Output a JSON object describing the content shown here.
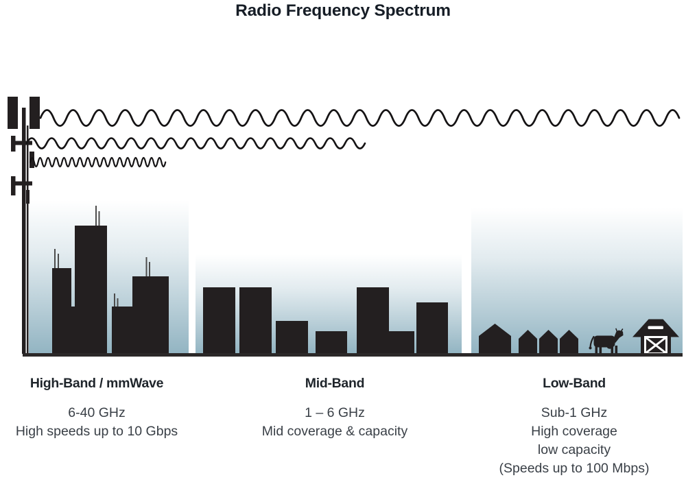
{
  "title": "Radio Frequency Spectrum",
  "bands": [
    {
      "id": "high-band",
      "heading": "High-Band / mmWave",
      "lines": [
        "6-40 GHz",
        "High speeds up to 10 Gbps"
      ],
      "scene": "city-skyscrapers",
      "wave": "short-wavelength-short-reach"
    },
    {
      "id": "mid-band",
      "heading": "Mid-Band",
      "lines": [
        "1 – 6 GHz",
        "Mid coverage & capacity"
      ],
      "scene": "mid-rise-buildings",
      "wave": "medium-wavelength-medium-reach"
    },
    {
      "id": "low-band",
      "heading": "Low-Band",
      "lines": [
        "Sub-1 GHz",
        "High coverage",
        "low capacity",
        "(Speeds up to 100 Mbps)"
      ],
      "scene": "rural-houses-cow-barn",
      "wave": "long-wavelength-longest-reach"
    }
  ],
  "icons": {
    "tower": "cell-tower-icon",
    "high_band_wave": "high-band-wave-icon",
    "mid_band_wave": "mid-band-wave-icon",
    "low_band_wave": "low-band-wave-icon",
    "cow": "cow-icon",
    "barn": "barn-icon",
    "house": "house-icon"
  },
  "colors": {
    "ink": "#231f20",
    "sky_top": "#ffffff",
    "sky_bottom": "#92b4c2",
    "ground": "#2b2828",
    "title_text": "#161d26",
    "body_text": "#393f46"
  }
}
